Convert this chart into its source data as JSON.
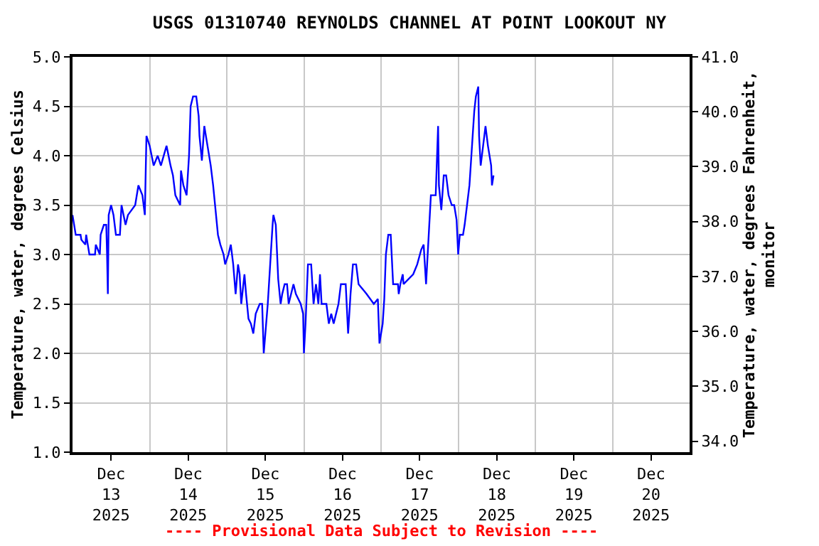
{
  "chart_data": {
    "type": "line",
    "title": "USGS 01310740 REYNOLDS CHANNEL AT POINT LOOKOUT NY",
    "ylabel": "Temperature, water, degrees Celsius",
    "y2label": "Temperature, water, degrees Fahrenheit,\nmonitor",
    "annotations": [
      "---- Provisional Data Subject to Revision ----"
    ],
    "xlim": [
      "2025-12-13",
      "2025-12-21"
    ],
    "xticks": [
      {
        "value": "2025-12-13T12:00",
        "label": "Dec\n13\n2025"
      },
      {
        "value": "2025-12-14T12:00",
        "label": "Dec\n14\n2025"
      },
      {
        "value": "2025-12-15T12:00",
        "label": "Dec\n15\n2025"
      },
      {
        "value": "2025-12-16T12:00",
        "label": "Dec\n16\n2025"
      },
      {
        "value": "2025-12-17T12:00",
        "label": "Dec\n17\n2025"
      },
      {
        "value": "2025-12-18T12:00",
        "label": "Dec\n18\n2025"
      },
      {
        "value": "2025-12-19T12:00",
        "label": "Dec\n19\n2025"
      },
      {
        "value": "2025-12-20T12:00",
        "label": "Dec\n20\n2025"
      },
      {
        "value": "2025-12-14",
        "label": null
      },
      {
        "value": "2025-12-15",
        "label": null
      },
      {
        "value": "2025-12-16",
        "label": null
      },
      {
        "value": "2025-12-17",
        "label": null
      },
      {
        "value": "2025-12-18",
        "label": null
      },
      {
        "value": "2025-12-19",
        "label": null
      },
      {
        "value": "2025-12-20",
        "label": null
      }
    ],
    "ylim": [
      1.0,
      5.0
    ],
    "yticks": [
      {
        "value": 1,
        "label": "1.0"
      },
      1.5,
      {
        "value": 2,
        "label": "2.0"
      },
      2.5,
      {
        "value": 3,
        "label": "3.0"
      },
      3.5,
      {
        "value": 4,
        "label": "4.0"
      },
      4.5,
      {
        "value": 5,
        "label": "5.0"
      }
    ],
    "y2lim": [
      33.8,
      41.0
    ],
    "y2ticks": [
      {
        "value": 34,
        "label": "34.0"
      },
      {
        "value": 35,
        "label": "35.0"
      },
      {
        "value": 36,
        "label": "36.0"
      },
      {
        "value": 37,
        "label": "37.0"
      },
      {
        "value": 38,
        "label": "38.0"
      },
      {
        "value": 39,
        "label": "39.0"
      },
      {
        "value": 40,
        "label": "40.0"
      },
      {
        "value": 41,
        "label": "41.0"
      }
    ],
    "grid": true,
    "marker": "none",
    "line_style": "solid",
    "series": [
      {
        "color": "#0000ff",
        "x": [
          "2025-12-13T00:00",
          "2025-12-13T00:30",
          "2025-12-13T01:00",
          "2025-12-13T02:30",
          "2025-12-13T02:45",
          "2025-12-13T04:00",
          "2025-12-13T04:15",
          "2025-12-13T04:45",
          "2025-12-13T05:15",
          "2025-12-13T07:00",
          "2025-12-13T07:15",
          "2025-12-13T08:30",
          "2025-12-13T08:45",
          "2025-12-13T09:45",
          "2025-12-13T10:30",
          "2025-12-13T10:45",
          "2025-12-13T11:00",
          "2025-12-13T11:15",
          "2025-12-13T12:00",
          "2025-12-13T12:45",
          "2025-12-13T13:30",
          "2025-12-13T14:45",
          "2025-12-13T15:15",
          "2025-12-13T16:30",
          "2025-12-13T17:15",
          "2025-12-13T19:30",
          "2025-12-13T20:30",
          "2025-12-13T21:45",
          "2025-12-13T22:30",
          "2025-12-13T23:00",
          "2025-12-14T00:00",
          "2025-12-14T01:15",
          "2025-12-14T02:30",
          "2025-12-14T03:30",
          "2025-12-14T05:15",
          "2025-12-14T06:30",
          "2025-12-14T07:15",
          "2025-12-14T08:00",
          "2025-12-14T09:30",
          "2025-12-14T09:45",
          "2025-12-14T10:30",
          "2025-12-14T11:30",
          "2025-12-14T12:15",
          "2025-12-14T12:45",
          "2025-12-14T13:30",
          "2025-12-14T14:30",
          "2025-12-14T15:15",
          "2025-12-14T15:30",
          "2025-12-14T16:15",
          "2025-12-14T17:00",
          "2025-12-14T18:00",
          "2025-12-14T19:00",
          "2025-12-14T19:45",
          "2025-12-14T20:30",
          "2025-12-14T21:15",
          "2025-12-14T22:00",
          "2025-12-14T23:00",
          "2025-12-14T23:30",
          "2025-12-15T00:30",
          "2025-12-15T01:15",
          "2025-12-15T02:00",
          "2025-12-15T02:45",
          "2025-12-15T03:30",
          "2025-12-15T04:00",
          "2025-12-15T04:30",
          "2025-12-15T05:30",
          "2025-12-15T06:00",
          "2025-12-15T06:45",
          "2025-12-15T07:30",
          "2025-12-15T08:15",
          "2025-12-15T09:00",
          "2025-12-15T10:15",
          "2025-12-15T11:00",
          "2025-12-15T11:30",
          "2025-12-15T12:00",
          "2025-12-15T12:45",
          "2025-12-15T13:30",
          "2025-12-15T14:15",
          "2025-12-15T14:30",
          "2025-12-15T15:15",
          "2025-12-15T16:00",
          "2025-12-15T16:45",
          "2025-12-15T17:15",
          "2025-12-15T18:00",
          "2025-12-15T18:45",
          "2025-12-15T19:15",
          "2025-12-15T20:45",
          "2025-12-15T21:30",
          "2025-12-15T23:00",
          "2025-12-15T23:45",
          "2025-12-16T00:00",
          "2025-12-16T00:30",
          "2025-12-16T01:15",
          "2025-12-16T02:15",
          "2025-12-16T03:00",
          "2025-12-16T03:45",
          "2025-12-16T04:30",
          "2025-12-16T05:00",
          "2025-12-16T05:30",
          "2025-12-16T07:00",
          "2025-12-16T07:45",
          "2025-12-16T08:30",
          "2025-12-16T09:15",
          "2025-12-16T10:00",
          "2025-12-16T10:45",
          "2025-12-16T11:30",
          "2025-12-16T13:00",
          "2025-12-16T13:45",
          "2025-12-16T14:30",
          "2025-12-16T15:15",
          "2025-12-16T16:15",
          "2025-12-16T17:00",
          "2025-12-16T19:30",
          "2025-12-16T21:45",
          "2025-12-16T23:00",
          "2025-12-16T23:30",
          "2025-12-17T00:30",
          "2025-12-17T01:00",
          "2025-12-17T01:30",
          "2025-12-17T02:15",
          "2025-12-17T03:00",
          "2025-12-17T03:45",
          "2025-12-17T05:15",
          "2025-12-17T05:30",
          "2025-12-17T06:00",
          "2025-12-17T06:45",
          "2025-12-17T07:00",
          "2025-12-17T10:00",
          "2025-12-17T11:15",
          "2025-12-17T12:30",
          "2025-12-17T13:15",
          "2025-12-17T14:00",
          "2025-12-17T14:45",
          "2025-12-17T15:30",
          "2025-12-17T17:00",
          "2025-12-17T17:45",
          "2025-12-17T18:00",
          "2025-12-17T18:45",
          "2025-12-17T19:30",
          "2025-12-17T20:15",
          "2025-12-17T21:00",
          "2025-12-17T22:00",
          "2025-12-17T22:45",
          "2025-12-17T23:30",
          "2025-12-18T00:00",
          "2025-12-18T00:30",
          "2025-12-18T01:30",
          "2025-12-18T02:00",
          "2025-12-18T02:45",
          "2025-12-18T03:30",
          "2025-12-18T04:30",
          "2025-12-18T05:00",
          "2025-12-18T05:30",
          "2025-12-18T06:15",
          "2025-12-18T06:30",
          "2025-12-18T07:00",
          "2025-12-18T07:45",
          "2025-12-18T08:30",
          "2025-12-18T09:15",
          "2025-12-18T09:45",
          "2025-12-18T10:15",
          "2025-12-18T10:30",
          "2025-12-18T11:00"
        ],
        "values": [
          3.4,
          3.3,
          3.2,
          3.2,
          3.15,
          3.1,
          3.2,
          3.1,
          3.0,
          3.0,
          3.1,
          3.0,
          3.2,
          3.3,
          3.3,
          3.0,
          2.6,
          3.4,
          3.5,
          3.4,
          3.2,
          3.2,
          3.5,
          3.3,
          3.4,
          3.5,
          3.7,
          3.6,
          3.4,
          4.2,
          4.1,
          3.9,
          4.0,
          3.9,
          4.1,
          3.9,
          3.8,
          3.6,
          3.5,
          3.85,
          3.7,
          3.6,
          4.0,
          4.5,
          4.6,
          4.6,
          4.4,
          4.2,
          3.95,
          4.3,
          4.1,
          3.9,
          3.7,
          3.45,
          3.2,
          3.1,
          3.0,
          2.9,
          3.0,
          3.1,
          2.9,
          2.6,
          2.9,
          2.8,
          2.5,
          2.8,
          2.6,
          2.35,
          2.3,
          2.2,
          2.4,
          2.5,
          2.5,
          2.0,
          2.2,
          2.5,
          2.9,
          3.3,
          3.4,
          3.3,
          2.75,
          2.5,
          2.6,
          2.7,
          2.7,
          2.5,
          2.7,
          2.6,
          2.5,
          2.4,
          2.0,
          2.3,
          2.9,
          2.9,
          2.5,
          2.7,
          2.5,
          2.8,
          2.5,
          2.5,
          2.3,
          2.4,
          2.3,
          2.4,
          2.5,
          2.7,
          2.7,
          2.2,
          2.6,
          2.9,
          2.9,
          2.7,
          2.6,
          2.5,
          2.55,
          2.1,
          2.3,
          2.55,
          3.0,
          3.2,
          3.2,
          2.7,
          2.7,
          2.6,
          2.7,
          2.8,
          2.7,
          2.8,
          2.9,
          3.05,
          3.1,
          2.7,
          3.15,
          3.6,
          3.6,
          4.3,
          3.7,
          3.45,
          3.8,
          3.8,
          3.6,
          3.5,
          3.5,
          3.35,
          3.0,
          3.2,
          3.2,
          3.3,
          3.5,
          3.7,
          4.2,
          4.45,
          4.6,
          4.7,
          4.2,
          3.9,
          4.1,
          4.3,
          4.1,
          4.0,
          3.9,
          3.7,
          3.8
        ]
      }
    ]
  }
}
